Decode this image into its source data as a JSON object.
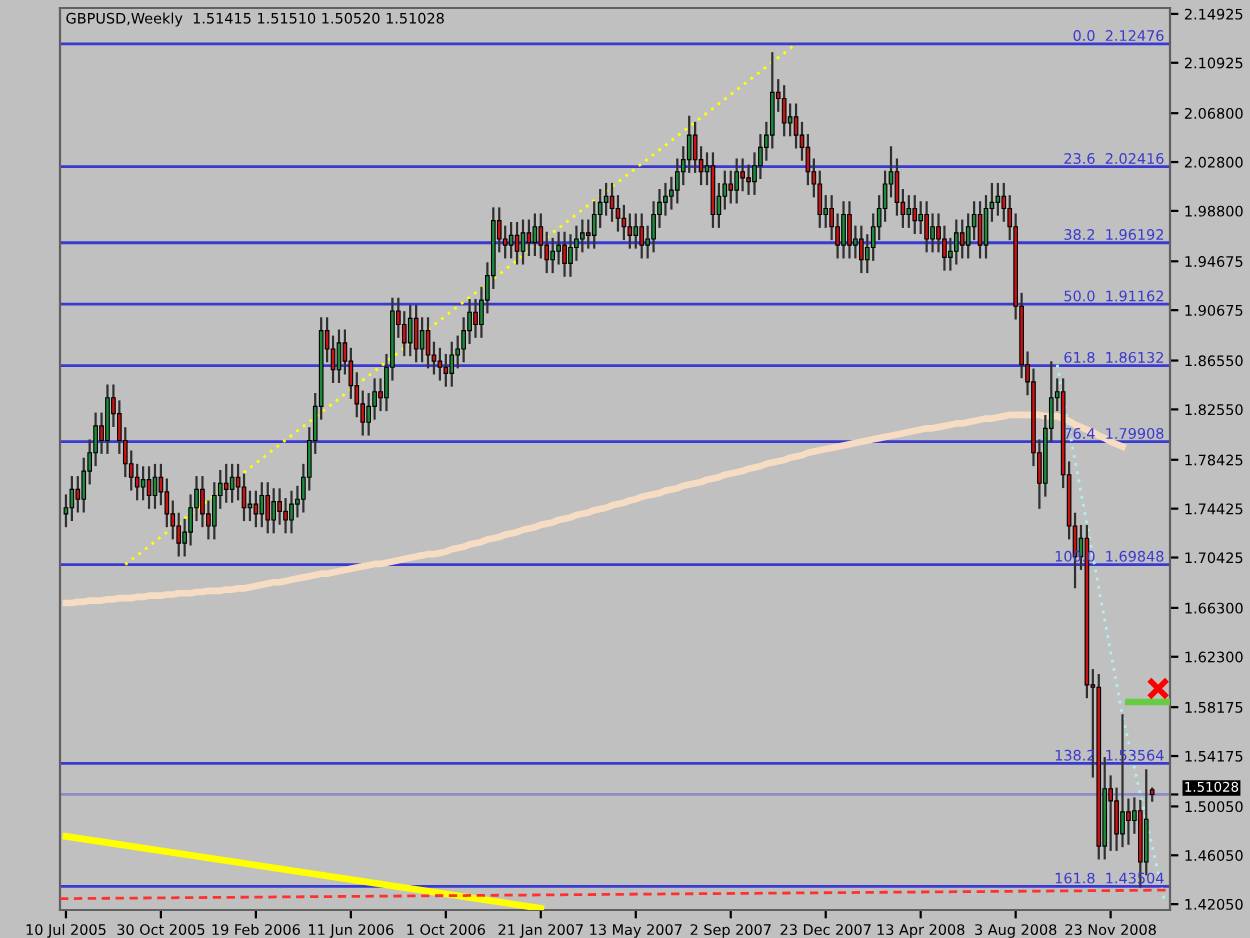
{
  "chart_data": {
    "type": "candlestick",
    "title": "GBPUSD,Weekly  1.51415 1.51510 1.50520 1.51028",
    "x": [
      "2005-07-10",
      "2005-07-17",
      "2005-07-24",
      "2005-07-31",
      "2005-08-07",
      "2005-08-14",
      "2005-08-21",
      "2005-08-28",
      "2005-09-04",
      "2005-09-11",
      "2005-09-18",
      "2005-09-25",
      "2005-10-02",
      "2005-10-09",
      "2005-10-16",
      "2005-10-23",
      "2005-10-30",
      "2005-11-06",
      "2005-11-13",
      "2005-11-20",
      "2005-11-27",
      "2005-12-04",
      "2005-12-11",
      "2005-12-18",
      "2005-12-25",
      "2006-01-01",
      "2006-01-08",
      "2006-01-15",
      "2006-01-22",
      "2006-01-29",
      "2006-02-05",
      "2006-02-12",
      "2006-02-19",
      "2006-02-26",
      "2006-03-05",
      "2006-03-12",
      "2006-03-19",
      "2006-03-26",
      "2006-04-02",
      "2006-04-09",
      "2006-04-16",
      "2006-04-23",
      "2006-04-30",
      "2006-05-07",
      "2006-05-14",
      "2006-05-21",
      "2006-05-28",
      "2006-06-04",
      "2006-06-11",
      "2006-06-18",
      "2006-06-25",
      "2006-07-02",
      "2006-07-09",
      "2006-07-16",
      "2006-07-23",
      "2006-07-30",
      "2006-08-06",
      "2006-08-13",
      "2006-08-20",
      "2006-08-27",
      "2006-09-03",
      "2006-09-10",
      "2006-09-17",
      "2006-09-24",
      "2006-10-01",
      "2006-10-08",
      "2006-10-15",
      "2006-10-22",
      "2006-10-29",
      "2006-11-05",
      "2006-11-12",
      "2006-11-19",
      "2006-11-26",
      "2006-12-03",
      "2006-12-10",
      "2006-12-17",
      "2006-12-24",
      "2006-12-31",
      "2007-01-07",
      "2007-01-14",
      "2007-01-21",
      "2007-01-28",
      "2007-02-04",
      "2007-02-11",
      "2007-02-18",
      "2007-02-25",
      "2007-03-04",
      "2007-03-11",
      "2007-03-18",
      "2007-03-25",
      "2007-04-01",
      "2007-04-08",
      "2007-04-15",
      "2007-04-22",
      "2007-04-29",
      "2007-05-06",
      "2007-05-13",
      "2007-05-20",
      "2007-05-27",
      "2007-06-03",
      "2007-06-10",
      "2007-06-17",
      "2007-06-24",
      "2007-07-01",
      "2007-07-08",
      "2007-07-15",
      "2007-07-22",
      "2007-07-29",
      "2007-08-05",
      "2007-08-12",
      "2007-08-19",
      "2007-08-26",
      "2007-09-02",
      "2007-09-09",
      "2007-09-16",
      "2007-09-23",
      "2007-09-30",
      "2007-10-07",
      "2007-10-14",
      "2007-10-21",
      "2007-10-28",
      "2007-11-04",
      "2007-11-11",
      "2007-11-18",
      "2007-11-25",
      "2007-12-02",
      "2007-12-09",
      "2007-12-16",
      "2007-12-23",
      "2007-12-30",
      "2008-01-06",
      "2008-01-13",
      "2008-01-20",
      "2008-01-27",
      "2008-02-03",
      "2008-02-10",
      "2008-02-17",
      "2008-02-24",
      "2008-03-02",
      "2008-03-09",
      "2008-03-16",
      "2008-03-23",
      "2008-03-30",
      "2008-04-06",
      "2008-04-13",
      "2008-04-20",
      "2008-04-27",
      "2008-05-04",
      "2008-05-11",
      "2008-05-18",
      "2008-05-25",
      "2008-06-01",
      "2008-06-08",
      "2008-06-15",
      "2008-06-22",
      "2008-06-29",
      "2008-07-06",
      "2008-07-13",
      "2008-07-20",
      "2008-07-27",
      "2008-08-03",
      "2008-08-10",
      "2008-08-17",
      "2008-08-24",
      "2008-08-31",
      "2008-09-07",
      "2008-09-14",
      "2008-09-21",
      "2008-09-28",
      "2008-10-05",
      "2008-10-12",
      "2008-10-19",
      "2008-10-26",
      "2008-11-02",
      "2008-11-09",
      "2008-11-16",
      "2008-11-23",
      "2008-11-30",
      "2008-12-07",
      "2008-12-14",
      "2008-12-21",
      "2008-12-28",
      "2009-01-04",
      "2009-01-11"
    ],
    "ohlc": [
      [
        1.74,
        1.755,
        1.73,
        1.745
      ],
      [
        1.745,
        1.77,
        1.735,
        1.76
      ],
      [
        1.76,
        1.77,
        1.742,
        1.752
      ],
      [
        1.752,
        1.785,
        1.742,
        1.775
      ],
      [
        1.775,
        1.8,
        1.765,
        1.79
      ],
      [
        1.79,
        1.822,
        1.78,
        1.812
      ],
      [
        1.812,
        1.822,
        1.79,
        1.8
      ],
      [
        1.8,
        1.845,
        1.79,
        1.835
      ],
      [
        1.835,
        1.845,
        1.812,
        1.822
      ],
      [
        1.822,
        1.832,
        1.79,
        1.8
      ],
      [
        1.8,
        1.81,
        1.771,
        1.781
      ],
      [
        1.781,
        1.791,
        1.76,
        1.77
      ],
      [
        1.77,
        1.78,
        1.752,
        1.762
      ],
      [
        1.762,
        1.778,
        1.752,
        1.768
      ],
      [
        1.768,
        1.778,
        1.745,
        1.755
      ],
      [
        1.755,
        1.78,
        1.745,
        1.77
      ],
      [
        1.77,
        1.78,
        1.748,
        1.758
      ],
      [
        1.758,
        1.768,
        1.73,
        1.74
      ],
      [
        1.74,
        1.75,
        1.72,
        1.73
      ],
      [
        1.73,
        1.74,
        1.706,
        1.716
      ],
      [
        1.716,
        1.735,
        1.706,
        1.725
      ],
      [
        1.725,
        1.755,
        1.715,
        1.745
      ],
      [
        1.745,
        1.77,
        1.735,
        1.76
      ],
      [
        1.76,
        1.77,
        1.73,
        1.74
      ],
      [
        1.74,
        1.75,
        1.72,
        1.73
      ],
      [
        1.73,
        1.765,
        1.72,
        1.755
      ],
      [
        1.755,
        1.775,
        1.745,
        1.765
      ],
      [
        1.765,
        1.78,
        1.75,
        1.76
      ],
      [
        1.76,
        1.78,
        1.75,
        1.77
      ],
      [
        1.77,
        1.78,
        1.752,
        1.762
      ],
      [
        1.762,
        1.772,
        1.735,
        1.745
      ],
      [
        1.745,
        1.758,
        1.735,
        1.748
      ],
      [
        1.748,
        1.758,
        1.73,
        1.74
      ],
      [
        1.74,
        1.765,
        1.73,
        1.755
      ],
      [
        1.755,
        1.765,
        1.725,
        1.735
      ],
      [
        1.735,
        1.76,
        1.725,
        1.75
      ],
      [
        1.75,
        1.76,
        1.732,
        1.742
      ],
      [
        1.742,
        1.752,
        1.725,
        1.735
      ],
      [
        1.735,
        1.758,
        1.725,
        1.748
      ],
      [
        1.748,
        1.762,
        1.738,
        1.752
      ],
      [
        1.752,
        1.78,
        1.742,
        1.77
      ],
      [
        1.77,
        1.81,
        1.76,
        1.8
      ],
      [
        1.8,
        1.838,
        1.79,
        1.828
      ],
      [
        1.828,
        1.9,
        1.818,
        1.89
      ],
      [
        1.89,
        1.9,
        1.865,
        1.875
      ],
      [
        1.875,
        1.885,
        1.848,
        1.858
      ],
      [
        1.858,
        1.89,
        1.848,
        1.88
      ],
      [
        1.88,
        1.89,
        1.855,
        1.865
      ],
      [
        1.865,
        1.875,
        1.835,
        1.845
      ],
      [
        1.845,
        1.855,
        1.82,
        1.83
      ],
      [
        1.83,
        1.84,
        1.805,
        1.815
      ],
      [
        1.815,
        1.838,
        1.805,
        1.828
      ],
      [
        1.828,
        1.85,
        1.818,
        1.84
      ],
      [
        1.84,
        1.85,
        1.825,
        1.835
      ],
      [
        1.835,
        1.87,
        1.825,
        1.86
      ],
      [
        1.86,
        1.916,
        1.85,
        1.906
      ],
      [
        1.906,
        1.916,
        1.885,
        1.895
      ],
      [
        1.895,
        1.905,
        1.87,
        1.88
      ],
      [
        1.88,
        1.91,
        1.87,
        1.9
      ],
      [
        1.9,
        1.91,
        1.865,
        1.875
      ],
      [
        1.875,
        1.9,
        1.865,
        1.89
      ],
      [
        1.89,
        1.9,
        1.86,
        1.87
      ],
      [
        1.87,
        1.88,
        1.855,
        1.865
      ],
      [
        1.865,
        1.875,
        1.85,
        1.86
      ],
      [
        1.86,
        1.87,
        1.845,
        1.855
      ],
      [
        1.855,
        1.88,
        1.845,
        1.87
      ],
      [
        1.87,
        1.885,
        1.86,
        1.875
      ],
      [
        1.875,
        1.9,
        1.865,
        1.89
      ],
      [
        1.89,
        1.915,
        1.88,
        1.905
      ],
      [
        1.905,
        1.915,
        1.885,
        1.895
      ],
      [
        1.895,
        1.925,
        1.885,
        1.915
      ],
      [
        1.915,
        1.945,
        1.905,
        1.935
      ],
      [
        1.935,
        1.99,
        1.925,
        1.98
      ],
      [
        1.98,
        1.99,
        1.955,
        1.965
      ],
      [
        1.965,
        1.975,
        1.95,
        1.96
      ],
      [
        1.96,
        1.978,
        1.95,
        1.968
      ],
      [
        1.968,
        1.978,
        1.945,
        1.955
      ],
      [
        1.955,
        1.98,
        1.945,
        1.97
      ],
      [
        1.97,
        1.98,
        1.952,
        1.962
      ],
      [
        1.962,
        1.985,
        1.952,
        1.975
      ],
      [
        1.975,
        1.985,
        1.95,
        1.96
      ],
      [
        1.96,
        1.97,
        1.938,
        1.948
      ],
      [
        1.948,
        1.965,
        1.938,
        1.955
      ],
      [
        1.955,
        1.97,
        1.945,
        1.96
      ],
      [
        1.96,
        1.97,
        1.935,
        1.945
      ],
      [
        1.945,
        1.968,
        1.935,
        1.958
      ],
      [
        1.958,
        1.975,
        1.948,
        1.965
      ],
      [
        1.965,
        1.98,
        1.955,
        1.97
      ],
      [
        1.97,
        1.98,
        1.958,
        1.968
      ],
      [
        1.968,
        1.995,
        1.958,
        1.985
      ],
      [
        1.985,
        2.005,
        1.975,
        1.995
      ],
      [
        1.995,
        2.01,
        1.985,
        2.0
      ],
      [
        2.0,
        2.01,
        1.98,
        1.99
      ],
      [
        1.99,
        2.0,
        1.972,
        1.982
      ],
      [
        1.982,
        1.992,
        1.965,
        1.975
      ],
      [
        1.975,
        1.985,
        1.958,
        1.968
      ],
      [
        1.968,
        1.985,
        1.958,
        1.975
      ],
      [
        1.975,
        1.985,
        1.95,
        1.96
      ],
      [
        1.96,
        1.975,
        1.95,
        1.965
      ],
      [
        1.965,
        1.995,
        1.955,
        1.985
      ],
      [
        1.985,
        2.005,
        1.975,
        1.995
      ],
      [
        1.995,
        2.01,
        1.985,
        2.0
      ],
      [
        2.0,
        2.015,
        1.99,
        2.005
      ],
      [
        2.005,
        2.03,
        1.995,
        2.02
      ],
      [
        2.02,
        2.04,
        2.01,
        2.03
      ],
      [
        2.03,
        2.065,
        2.02,
        2.05
      ],
      [
        2.05,
        2.06,
        2.02,
        2.03
      ],
      [
        2.03,
        2.04,
        2.01,
        2.02
      ],
      [
        2.02,
        2.035,
        2.01,
        2.025
      ],
      [
        2.025,
        2.035,
        1.975,
        1.985
      ],
      [
        1.985,
        2.01,
        1.975,
        2.0
      ],
      [
        2.0,
        2.02,
        1.99,
        2.01
      ],
      [
        2.01,
        2.02,
        1.995,
        2.005
      ],
      [
        2.005,
        2.03,
        1.995,
        2.02
      ],
      [
        2.02,
        2.03,
        2.005,
        2.015
      ],
      [
        2.015,
        2.025,
        2.002,
        2.012
      ],
      [
        2.012,
        2.035,
        2.002,
        2.025
      ],
      [
        2.025,
        2.05,
        2.015,
        2.04
      ],
      [
        2.04,
        2.06,
        2.03,
        2.05
      ],
      [
        2.05,
        2.117,
        2.04,
        2.085
      ],
      [
        2.085,
        2.095,
        2.07,
        2.08
      ],
      [
        2.08,
        2.09,
        2.05,
        2.06
      ],
      [
        2.06,
        2.075,
        2.05,
        2.065
      ],
      [
        2.065,
        2.075,
        2.04,
        2.05
      ],
      [
        2.05,
        2.06,
        2.03,
        2.04
      ],
      [
        2.04,
        2.05,
        2.01,
        2.02
      ],
      [
        2.02,
        2.03,
        2.0,
        2.01
      ],
      [
        2.01,
        2.02,
        1.975,
        1.985
      ],
      [
        1.985,
        2.0,
        1.975,
        1.99
      ],
      [
        1.99,
        2.0,
        1.965,
        1.975
      ],
      [
        1.975,
        1.985,
        1.95,
        1.96
      ],
      [
        1.96,
        1.995,
        1.95,
        1.985
      ],
      [
        1.985,
        1.995,
        1.95,
        1.96
      ],
      [
        1.96,
        1.975,
        1.95,
        1.965
      ],
      [
        1.965,
        1.975,
        1.938,
        1.948
      ],
      [
        1.948,
        1.968,
        1.938,
        1.958
      ],
      [
        1.958,
        1.985,
        1.948,
        1.975
      ],
      [
        1.975,
        2.0,
        1.965,
        1.99
      ],
      [
        1.99,
        2.02,
        1.98,
        2.01
      ],
      [
        2.01,
        2.04,
        2.0,
        2.02
      ],
      [
        2.02,
        2.03,
        1.985,
        1.995
      ],
      [
        1.995,
        2.005,
        1.975,
        1.985
      ],
      [
        1.985,
        2.0,
        1.975,
        1.99
      ],
      [
        1.99,
        2.0,
        1.97,
        1.98
      ],
      [
        1.98,
        1.995,
        1.97,
        1.985
      ],
      [
        1.985,
        1.995,
        1.955,
        1.965
      ],
      [
        1.965,
        1.985,
        1.955,
        1.975
      ],
      [
        1.975,
        1.985,
        1.955,
        1.965
      ],
      [
        1.965,
        1.975,
        1.94,
        1.95
      ],
      [
        1.95,
        1.965,
        1.94,
        1.955
      ],
      [
        1.955,
        1.98,
        1.945,
        1.97
      ],
      [
        1.97,
        1.98,
        1.95,
        1.96
      ],
      [
        1.96,
        1.985,
        1.95,
        1.975
      ],
      [
        1.975,
        1.995,
        1.965,
        1.985
      ],
      [
        1.985,
        1.995,
        1.95,
        1.96
      ],
      [
        1.96,
        2.0,
        1.95,
        1.99
      ],
      [
        1.99,
        2.01,
        1.98,
        1.995
      ],
      [
        1.995,
        2.01,
        1.985,
        2.0
      ],
      [
        2.0,
        2.01,
        1.98,
        1.99
      ],
      [
        1.99,
        2.0,
        1.965,
        1.975
      ],
      [
        1.975,
        1.985,
        1.9,
        1.91
      ],
      [
        1.91,
        1.92,
        1.852,
        1.862
      ],
      [
        1.862,
        1.872,
        1.838,
        1.848
      ],
      [
        1.848,
        1.858,
        1.78,
        1.79
      ],
      [
        1.79,
        1.8,
        1.745,
        1.765
      ],
      [
        1.765,
        1.82,
        1.755,
        1.81
      ],
      [
        1.81,
        1.864,
        1.8,
        1.835
      ],
      [
        1.835,
        1.85,
        1.825,
        1.84
      ],
      [
        1.84,
        1.85,
        1.762,
        1.772
      ],
      [
        1.772,
        1.782,
        1.72,
        1.73
      ],
      [
        1.73,
        1.74,
        1.68,
        1.705
      ],
      [
        1.705,
        1.73,
        1.695,
        1.72
      ],
      [
        1.72,
        1.73,
        1.59,
        1.6
      ],
      [
        1.6,
        1.612,
        1.525,
        1.598
      ],
      [
        1.598,
        1.608,
        1.458,
        1.468
      ],
      [
        1.468,
        1.54,
        1.458,
        1.515
      ],
      [
        1.515,
        1.525,
        1.465,
        1.505
      ],
      [
        1.505,
        1.515,
        1.465,
        1.478
      ],
      [
        1.478,
        1.575,
        1.468,
        1.496
      ],
      [
        1.496,
        1.506,
        1.47,
        1.489
      ],
      [
        1.489,
        1.507,
        1.479,
        1.497
      ],
      [
        1.497,
        1.505,
        1.435,
        1.455
      ],
      [
        1.455,
        1.53,
        1.445,
        1.49
      ],
      [
        1.51415,
        1.5151,
        1.5052,
        1.51028
      ]
    ],
    "series": [
      {
        "type": "line",
        "color": "#f5dcc3",
        "line_style": "solid",
        "values": [
          1.667,
          1.667,
          1.668,
          1.668,
          1.669,
          1.669,
          1.669,
          1.67,
          1.67,
          1.671,
          1.671,
          1.671,
          1.672,
          1.672,
          1.673,
          1.673,
          1.673,
          1.674,
          1.674,
          1.675,
          1.675,
          1.675,
          1.676,
          1.676,
          1.677,
          1.677,
          1.677,
          1.678,
          1.678,
          1.679,
          1.679,
          1.68,
          1.681,
          1.682,
          1.683,
          1.684,
          1.684,
          1.685,
          1.686,
          1.687,
          1.688,
          1.689,
          1.69,
          1.691,
          1.691,
          1.692,
          1.693,
          1.694,
          1.695,
          1.696,
          1.697,
          1.698,
          1.699,
          1.699,
          1.7,
          1.701,
          1.702,
          1.703,
          1.704,
          1.705,
          1.706,
          1.707,
          1.707,
          1.708,
          1.709,
          1.711,
          1.712,
          1.713,
          1.715,
          1.716,
          1.717,
          1.719,
          1.72,
          1.721,
          1.723,
          1.724,
          1.725,
          1.727,
          1.728,
          1.729,
          1.731,
          1.732,
          1.733,
          1.735,
          1.736,
          1.737,
          1.739,
          1.74,
          1.741,
          1.743,
          1.744,
          1.745,
          1.747,
          1.748,
          1.749,
          1.751,
          1.752,
          1.754,
          1.755,
          1.756,
          1.757,
          1.759,
          1.76,
          1.761,
          1.763,
          1.764,
          1.765,
          1.766,
          1.768,
          1.769,
          1.77,
          1.772,
          1.773,
          1.774,
          1.775,
          1.777,
          1.778,
          1.779,
          1.781,
          1.782,
          1.783,
          1.784,
          1.786,
          1.787,
          1.788,
          1.79,
          1.791,
          1.792,
          1.793,
          1.794,
          1.795,
          1.796,
          1.797,
          1.798,
          1.799,
          1.8,
          1.801,
          1.802,
          1.803,
          1.804,
          1.805,
          1.806,
          1.807,
          1.808,
          1.809,
          1.81,
          1.81,
          1.811,
          1.812,
          1.813,
          1.814,
          1.814,
          1.815,
          1.816,
          1.817,
          1.818,
          1.818,
          1.819,
          1.82,
          1.821,
          1.821,
          1.821,
          1.821,
          1.821,
          1.821,
          1.82,
          1.82,
          1.82,
          1.818,
          1.816,
          1.813,
          1.811,
          1.809,
          1.807,
          1.804,
          1.802,
          1.799,
          1.797,
          1.795,
          null,
          null,
          null,
          null,
          null
        ]
      },
      {
        "type": "line",
        "color": "#ffff00",
        "line_style": "solid",
        "x": [
          "2005-07-10",
          "2007-01-21"
        ],
        "values": [
          1.476,
          1.417
        ]
      },
      {
        "type": "line",
        "color": "#ffff00",
        "line_style": "dotted",
        "x": [
          "2005-09-18",
          "2007-11-18"
        ],
        "values": [
          1.69848,
          2.12476
        ]
      },
      {
        "type": "line",
        "color": "#aef0f0",
        "line_style": "dotted",
        "x": [
          "2008-09-21",
          "2008-12-07",
          "2009-01-25"
        ],
        "values": [
          1.862,
          1.575,
          1.425
        ]
      },
      {
        "type": "line",
        "color": "#ff3030",
        "line_style": "dashed",
        "x": [
          "2005-07-03",
          "2009-02-01"
        ],
        "values": [
          1.425,
          1.432
        ]
      },
      {
        "type": "line",
        "color": "#66cc44",
        "line_style": "solid",
        "x": [
          "2008-12-14",
          "2009-02-01"
        ],
        "values": [
          1.586,
          1.586
        ]
      },
      {
        "type": "scatter",
        "color": "#ff0000",
        "marker": "cross",
        "x": [
          "2009-01-18"
        ],
        "values": [
          1.597
        ]
      }
    ],
    "ref_lines": [
      {
        "axis": "y",
        "value": 2.12476,
        "label": "0.0  2.12476",
        "color": "#3a3ad0"
      },
      {
        "axis": "y",
        "value": 2.02416,
        "label": "23.6  2.02416",
        "color": "#3a3ad0"
      },
      {
        "axis": "y",
        "value": 1.96192,
        "label": "38.2  1.96192",
        "color": "#3a3ad0"
      },
      {
        "axis": "y",
        "value": 1.91162,
        "label": "50.0  1.91162",
        "color": "#3a3ad0"
      },
      {
        "axis": "y",
        "value": 1.86132,
        "label": "61.8  1.86132",
        "color": "#3a3ad0"
      },
      {
        "axis": "y",
        "value": 1.79908,
        "label": "76.4  1.79908",
        "color": "#3a3ad0"
      },
      {
        "axis": "y",
        "value": 1.69848,
        "label": "100.0  1.69848",
        "color": "#3a3ad0"
      },
      {
        "axis": "y",
        "value": 1.53564,
        "label": "138.2  1.53564",
        "color": "#3a3ad0"
      },
      {
        "axis": "y",
        "value": 1.43504,
        "label": "161.8  1.43504",
        "color": "#3a3ad0"
      },
      {
        "axis": "y",
        "value": 1.51028,
        "color": "#8c8cc8"
      }
    ],
    "xlim": [
      "2005-07-03",
      "2009-02-01"
    ],
    "xticks": [
      {
        "value": "2005-07-10",
        "label": "10 Jul 2005"
      },
      {
        "value": "2005-10-30",
        "label": "30 Oct 2005"
      },
      {
        "value": "2006-02-19",
        "label": "19 Feb 2006"
      },
      {
        "value": "2006-06-11",
        "label": "11 Jun 2006"
      },
      {
        "value": "2006-10-01",
        "label": "1 Oct 2006"
      },
      {
        "value": "2007-01-21",
        "label": "21 Jan 2007"
      },
      {
        "value": "2007-05-13",
        "label": "13 May 2007"
      },
      {
        "value": "2007-09-02",
        "label": "2 Sep 2007"
      },
      {
        "value": "2007-12-23",
        "label": "23 Dec 2007"
      },
      {
        "value": "2008-04-13",
        "label": "13 Apr 2008"
      },
      {
        "value": "2008-08-03",
        "label": "3 Aug 2008"
      },
      {
        "value": "2008-11-23",
        "label": "23 Nov 2008"
      }
    ],
    "ylim": [
      1.4157,
      2.1541
    ],
    "yticks": [
      {
        "value": 2.14925,
        "label": "2.14925"
      },
      {
        "value": 2.10925,
        "label": "2.10925"
      },
      {
        "value": 2.068,
        "label": "2.06800"
      },
      {
        "value": 2.028,
        "label": "2.02800"
      },
      {
        "value": 1.988,
        "label": "1.98800"
      },
      {
        "value": 1.94675,
        "label": "1.94675"
      },
      {
        "value": 1.90675,
        "label": "1.90675"
      },
      {
        "value": 1.8655,
        "label": "1.86550"
      },
      {
        "value": 1.8255,
        "label": "1.82550"
      },
      {
        "value": 1.78425,
        "label": "1.78425"
      },
      {
        "value": 1.74425,
        "label": "1.74425"
      },
      {
        "value": 1.70425,
        "label": "1.70425"
      },
      {
        "value": 1.663,
        "label": "1.66300"
      },
      {
        "value": 1.623,
        "label": "1.62300"
      },
      {
        "value": 1.58175,
        "label": "1.58175"
      },
      {
        "value": 1.54175,
        "label": "1.54175"
      },
      {
        "value": 1.5005,
        "label": "1.50050"
      },
      {
        "value": 1.4605,
        "label": "1.46050"
      },
      {
        "value": 1.4205,
        "label": "1.42050"
      },
      {
        "value": 1.51028,
        "label": "1.51028"
      }
    ],
    "grid": false,
    "legend": false
  }
}
